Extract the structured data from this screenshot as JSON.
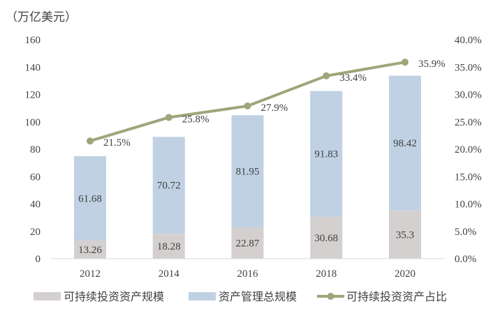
{
  "chart_data": {
    "type": "bar",
    "subtype": "stacked bar with line on secondary axis",
    "unit_label": "（万亿美元）",
    "categories": [
      "2012",
      "2014",
      "2016",
      "2018",
      "2020"
    ],
    "series": [
      {
        "name": "可持续投资资产规模",
        "type": "bar",
        "axis": "left",
        "color": "#d4d0cf",
        "values": [
          13.26,
          18.28,
          22.87,
          30.68,
          35.3
        ],
        "labels": [
          "13.26",
          "18.28",
          "22.87",
          "30.68",
          "35.3"
        ]
      },
      {
        "name": "资产管理总规模",
        "type": "bar",
        "axis": "left",
        "color": "#bfd1e3",
        "values": [
          61.68,
          70.72,
          81.95,
          91.83,
          98.42
        ],
        "labels": [
          "61.68",
          "70.72",
          "81.95",
          "91.83",
          "98.42"
        ]
      },
      {
        "name": "可持续投资资产占比",
        "type": "line",
        "axis": "right",
        "color": "#9ca679",
        "values": [
          21.5,
          25.8,
          27.9,
          33.4,
          35.9
        ],
        "labels": [
          "21.5%",
          "25.8%",
          "27.9%",
          "33.4%",
          "35.9%"
        ]
      }
    ],
    "ylim": [
      0,
      160
    ],
    "yticks": [
      "0",
      "20",
      "40",
      "60",
      "80",
      "100",
      "120",
      "140",
      "160"
    ],
    "y2lim": [
      0,
      40
    ],
    "y2ticks": [
      "0.0%",
      "5.0%",
      "10.0%",
      "15.0%",
      "20.0%",
      "25.0%",
      "30.0%",
      "35.0%",
      "40.0%"
    ],
    "grid": false,
    "legend_position": "bottom"
  }
}
